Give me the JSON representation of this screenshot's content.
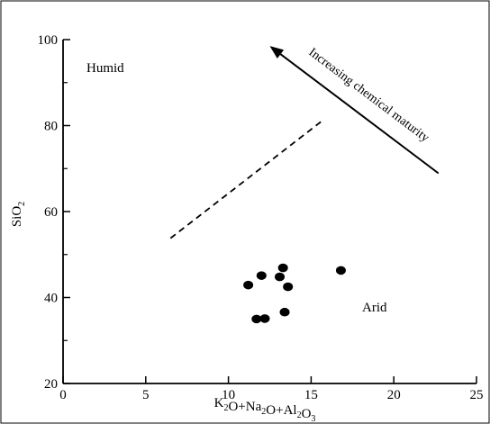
{
  "chart_data": {
    "type": "scatter",
    "title": "",
    "xlabel": "K2O+Na2O+Al2O3",
    "ylabel": "SiO2",
    "xlim": [
      0,
      25
    ],
    "ylim": [
      20,
      100
    ],
    "x_ticks": [
      0,
      5,
      10,
      15,
      20,
      25
    ],
    "y_ticks": [
      20,
      40,
      60,
      80,
      100
    ],
    "x_tick_labels": [
      "0",
      "5",
      "10",
      "15",
      "20",
      "25"
    ],
    "y_tick_labels": [
      "20",
      "40",
      "60",
      "80",
      "100"
    ],
    "grid": false,
    "series": [
      {
        "x": [
          11.2,
          11.7,
          12.0,
          12.2,
          13.1,
          13.3,
          13.4,
          13.6,
          16.8
        ],
        "y": [
          42.9,
          35.0,
          45.1,
          35.1,
          44.8,
          46.9,
          36.6,
          42.5,
          46.3
        ]
      }
    ],
    "divider_line": {
      "x": [
        6.5,
        15.8
      ],
      "y": [
        53.8,
        81.5
      ],
      "style": "dashed"
    },
    "maturity_arrow": {
      "x": [
        22.7,
        12.5
      ],
      "y": [
        68.9,
        98.5
      ]
    },
    "regions": {
      "humid": "Humid",
      "arid": "Arid"
    },
    "annotation": "Increasing chemical maturity"
  }
}
